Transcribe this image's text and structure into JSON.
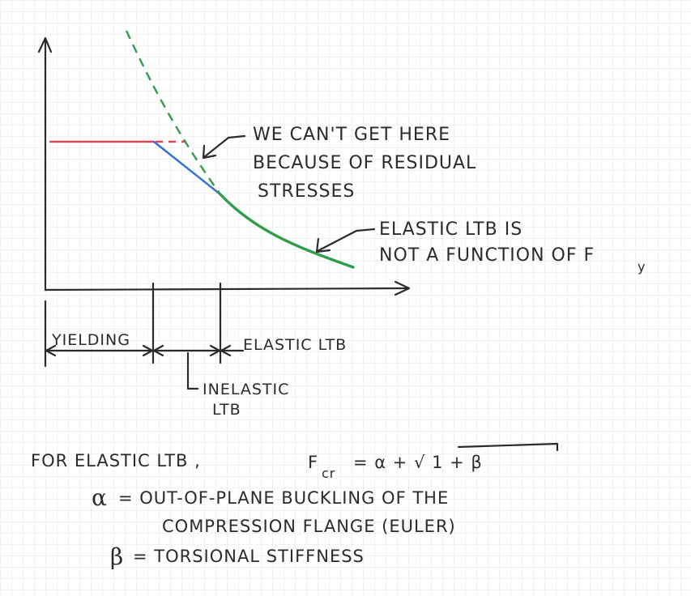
{
  "annotations": {
    "residual_line1": "WE CAN'T GET HERE",
    "residual_line2": "BECAUSE OF RESIDUAL",
    "residual_line3": "STRESSES",
    "elastic_line1": "ELASTIC LTB IS",
    "elastic_line2": "NOT A FUNCTION OF F",
    "elastic_sub": "y"
  },
  "zones": {
    "yielding": "YIELDING",
    "elastic": "ELASTIC LTB",
    "inelastic_line1": "INELASTIC",
    "inelastic_line2": "LTB"
  },
  "equation": {
    "prefix": "FOR ELASTIC LTB ,",
    "f": "F",
    "cr": "cr",
    "rhs": "= α + √ 1 + β",
    "alpha_sym": "α",
    "alpha_line1": "= OUT-OF-PLANE BUCKLING OF THE",
    "alpha_line2": "COMPRESSION FLANGE (EULER)",
    "beta_sym": "β",
    "beta_line": "= TORSIONAL STIFFNESS"
  },
  "colors": {
    "ink": "#2b2b2b",
    "yield_plateau": "#d9475a",
    "inelastic": "#2f6fd6",
    "elastic": "#2e9e4a"
  }
}
